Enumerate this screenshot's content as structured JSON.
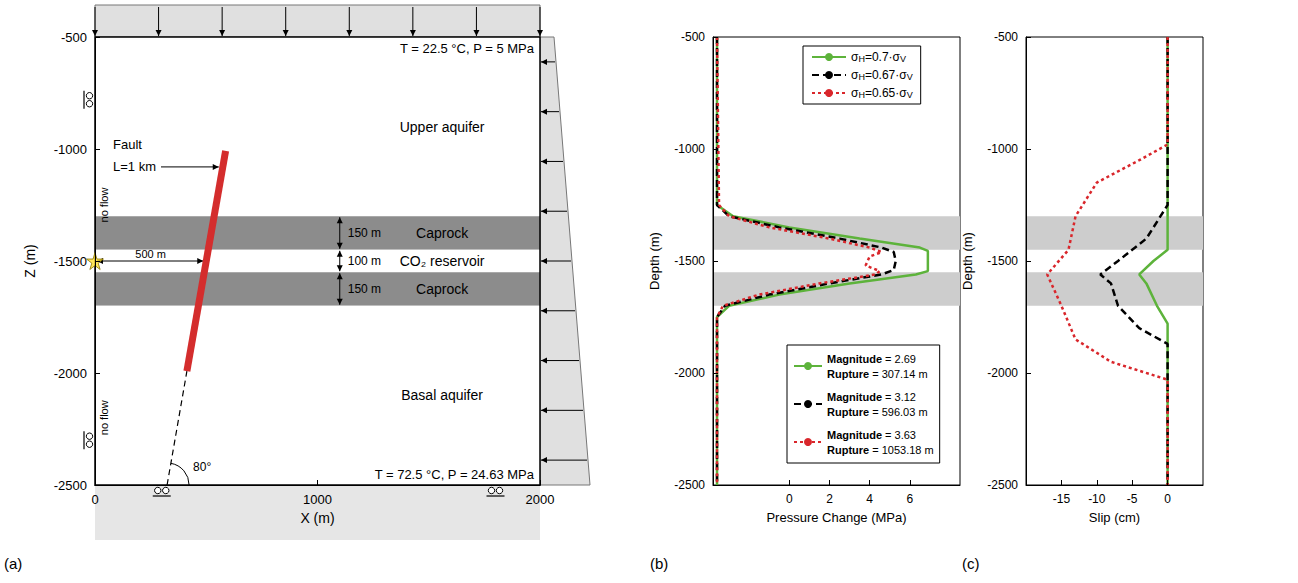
{
  "chart_data": [
    {
      "type": "diagram",
      "panel": "(a)",
      "x_label": "X (m)",
      "y_label": "Z (m)",
      "xlim": [
        0,
        2000
      ],
      "ylim": [
        -2500,
        -500
      ],
      "xticks": [
        0,
        1000,
        2000
      ],
      "yticks": [
        -2500,
        -2000,
        -1500,
        -1000,
        -500
      ],
      "top_condition": "T = 22.5 °C, P = 5 MPa",
      "bottom_condition": "T = 72.5 °C, P = 24.63 MPa",
      "boundary_label": "no flow",
      "layers": [
        {
          "name": "Upper aquifer",
          "top": -500,
          "bottom": -1300,
          "color": "#ffffff"
        },
        {
          "name": "Caprock",
          "top": -1300,
          "bottom": -1450,
          "color": "#8c8c8c",
          "thickness_label": "150 m"
        },
        {
          "name": "CO₂ reservoir",
          "top": -1450,
          "bottom": -1550,
          "color": "#ffffff",
          "thickness_label": "100 m"
        },
        {
          "name": "Caprock",
          "top": -1550,
          "bottom": -1700,
          "color": "#8c8c8c",
          "thickness_label": "150 m"
        },
        {
          "name": "Basal aquifer",
          "top": -1700,
          "bottom": -2500,
          "color": "#ffffff"
        }
      ],
      "injection": {
        "x": 0,
        "z": -1500,
        "fault_x": 500,
        "distance_label": "500 m",
        "color": "#ffe033"
      },
      "fault": {
        "label": "Fault",
        "length_label": "L=1 km",
        "dip_label": "80°",
        "x": [
          413,
          587
        ],
        "z": [
          -1992,
          -1008
        ],
        "extension_x": [
          324,
          413
        ],
        "extension_z": [
          -2500,
          -1992
        ],
        "color": "#d42d2d"
      }
    },
    {
      "type": "line",
      "panel": "(b)",
      "x_label": "Pressure Change (MPa)",
      "y_label": "Depth (m)",
      "xlim": [
        -3.8,
        8.5
      ],
      "ylim": [
        -2500,
        -500
      ],
      "xticks": [
        0,
        2,
        4,
        6
      ],
      "yticks": [
        -2500,
        -2000,
        -1500,
        -1000,
        -500
      ],
      "legend": "upper right",
      "shaded_depths": [
        [
          -1300,
          -1450
        ],
        [
          -1550,
          -1700
        ]
      ],
      "series": [
        {
          "name": "σH=0.7·σV",
          "color": "#5db33b",
          "line_style": "solid",
          "magnitude_label": "Magnitude = 2.69",
          "rupture_label": "Rupture = 307.14 m",
          "x": [
            -3.6,
            -3.6,
            -2.8,
            0,
            3.5,
            6.5,
            6.9,
            6.9,
            6.3,
            3,
            -0.5,
            -3,
            -3.6,
            -3.6
          ],
          "y": [
            -500,
            -1250,
            -1300,
            -1350,
            -1400,
            -1440,
            -1455,
            -1545,
            -1560,
            -1600,
            -1650,
            -1700,
            -1750,
            -2500
          ]
        },
        {
          "name": "σH=0.67·σV",
          "color": "#000000",
          "line_style": "dashed",
          "magnitude_label": "Magnitude = 3.12",
          "rupture_label": "Rupture = 596.03 m",
          "x": [
            -3.6,
            -3.6,
            -3,
            -0.5,
            2.5,
            4.6,
            5.2,
            5.3,
            5.2,
            4.6,
            2,
            -1,
            -3.2,
            -3.6,
            -3.6
          ],
          "y": [
            -500,
            -1250,
            -1300,
            -1350,
            -1400,
            -1440,
            -1460,
            -1500,
            -1540,
            -1560,
            -1600,
            -1650,
            -1700,
            -1750,
            -2500
          ]
        },
        {
          "name": "σH=0.65·σV",
          "color": "#d9262b",
          "line_style": "dotted",
          "magnitude_label": "Magnitude = 3.63",
          "rupture_label": "Rupture = 1053.18 m",
          "x": [
            -3.6,
            -3.5,
            -3,
            -1,
            2,
            4,
            4.6,
            4,
            3.8,
            4.5,
            4.3,
            1.5,
            -1.5,
            -3.3,
            -3.6,
            -3.6
          ],
          "y": [
            -500,
            -1250,
            -1300,
            -1350,
            -1400,
            -1440,
            -1460,
            -1480,
            -1520,
            -1545,
            -1560,
            -1600,
            -1650,
            -1700,
            -1750,
            -2500
          ]
        }
      ]
    },
    {
      "type": "line",
      "panel": "(c)",
      "x_label": "Slip (cm)",
      "y_label": "Depth (m)",
      "xlim": [
        -20,
        5
      ],
      "ylim": [
        -2500,
        -500
      ],
      "xticks": [
        -15,
        -10,
        -5,
        0
      ],
      "yticks": [
        -2500,
        -2000,
        -1500,
        -1000,
        -500
      ],
      "shaded_depths": [
        [
          -1300,
          -1450
        ],
        [
          -1550,
          -1700
        ]
      ],
      "series": [
        {
          "name": "σH=0.7·σV",
          "color": "#5db33b",
          "line_style": "solid",
          "x": [
            0,
            0,
            -2,
            -4,
            -3,
            -1.5,
            0,
            0
          ],
          "y": [
            -500,
            -1450,
            -1500,
            -1560,
            -1600,
            -1700,
            -1780,
            -2500
          ]
        },
        {
          "name": "σH=0.67·σV",
          "color": "#000000",
          "line_style": "dashed",
          "x": [
            0,
            0,
            -1,
            -3,
            -7,
            -9.5,
            -8,
            -7,
            -4,
            0,
            0
          ],
          "y": [
            -500,
            -1250,
            -1300,
            -1400,
            -1500,
            -1560,
            -1600,
            -1700,
            -1800,
            -1870,
            -2500
          ]
        },
        {
          "name": "σH=0.65·σV",
          "color": "#d9262b",
          "line_style": "dotted",
          "x": [
            0,
            0,
            -4,
            -10,
            -13,
            -14,
            -17,
            -15,
            -13,
            -8,
            0,
            0
          ],
          "y": [
            -500,
            -980,
            -1050,
            -1150,
            -1300,
            -1450,
            -1560,
            -1700,
            -1850,
            -1950,
            -2030,
            -2500
          ]
        }
      ]
    }
  ]
}
